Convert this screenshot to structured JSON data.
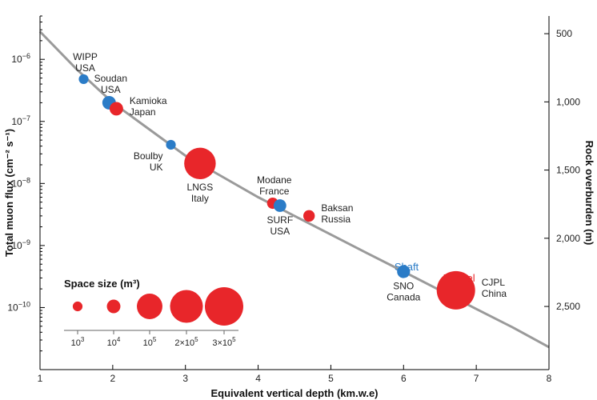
{
  "chart_data": {
    "type": "scatter",
    "x_axis": {
      "label": "Equivalent vertical depth (km.w.e)",
      "range": [
        1,
        8
      ],
      "ticks": [
        1,
        2,
        3,
        4,
        5,
        6,
        7,
        8
      ]
    },
    "y_axis": {
      "label": "Total muon flux (cm⁻² s⁻¹)",
      "scale": "log",
      "range": [
        1e-11,
        5e-06
      ],
      "ticks": [
        {
          "value": 1e-10,
          "base": "10",
          "exp": "−10"
        },
        {
          "value": 1e-09,
          "base": "10",
          "exp": "−9"
        },
        {
          "value": 1e-08,
          "base": "10",
          "exp": "−8"
        },
        {
          "value": 1e-07,
          "base": "10",
          "exp": "−7"
        },
        {
          "value": 1e-06,
          "base": "10",
          "exp": "−6"
        }
      ]
    },
    "y2_axis": {
      "label": "Rock overburden (m)",
      "ticks": [
        {
          "label": "500",
          "depth": 1.35
        },
        {
          "label": "1,000",
          "depth": 2.7
        },
        {
          "label": "1,500",
          "depth": 4.05
        },
        {
          "label": "2,000",
          "depth": 5.4
        },
        {
          "label": "2,500",
          "depth": 6.75
        }
      ]
    },
    "trend_line": {
      "points": [
        [
          1.0,
          2.8e-06
        ],
        [
          1.5,
          7e-07
        ],
        [
          2.0,
          2e-07
        ],
        [
          2.5,
          7.5e-08
        ],
        [
          3.0,
          2.8e-08
        ],
        [
          3.5,
          1.3e-08
        ],
        [
          4.0,
          6e-09
        ],
        [
          4.5,
          3e-09
        ],
        [
          5.0,
          1.5e-09
        ],
        [
          5.5,
          7.5e-10
        ],
        [
          6.0,
          3.8e-10
        ],
        [
          6.5,
          1.9e-10
        ],
        [
          7.0,
          9.5e-11
        ],
        [
          7.5,
          4.8e-11
        ],
        [
          8.0,
          2.3e-11
        ]
      ]
    },
    "categories": [
      {
        "name": "Shaft",
        "color": "#2b7cc7"
      },
      {
        "name": "Tunnel",
        "color": "#e8262a"
      }
    ],
    "sites": [
      {
        "name": "WIPP",
        "country": "USA",
        "depth": 1.6,
        "flux": 4.8e-07,
        "size": 1000,
        "type": "shaft",
        "label_pos": "above"
      },
      {
        "name": "Soudan",
        "country": "USA",
        "depth": 1.95,
        "flux": 2e-07,
        "size": 10000,
        "type": "shaft",
        "label_pos": "above"
      },
      {
        "name": "Kamioka",
        "country": "Japan",
        "depth": 2.05,
        "flux": 1.6e-07,
        "size": 10000,
        "type": "tunnel",
        "label_pos": "right"
      },
      {
        "name": "Boulby",
        "country": "UK",
        "depth": 2.8,
        "flux": 4.2e-08,
        "size": 1000,
        "type": "shaft",
        "label_pos": "below-left"
      },
      {
        "name": "LNGS",
        "country": "Italy",
        "depth": 3.2,
        "flux": 2.1e-08,
        "size": 180000,
        "type": "tunnel",
        "label_pos": "below"
      },
      {
        "name": "Modane",
        "country": "France",
        "depth": 4.2,
        "flux": 4.8e-09,
        "size": 3500,
        "type": "tunnel",
        "label_pos": "above"
      },
      {
        "name": "SURF",
        "country": "USA",
        "depth": 4.3,
        "flux": 4.4e-09,
        "size": 7000,
        "type": "shaft",
        "label_pos": "below"
      },
      {
        "name": "Baksan",
        "country": "Russia",
        "depth": 4.7,
        "flux": 3e-09,
        "size": 4000,
        "type": "tunnel",
        "label_pos": "right"
      },
      {
        "name": "SNO",
        "country": "Canada",
        "depth": 6.0,
        "flux": 3.8e-10,
        "size": 8000,
        "type": "shaft",
        "label_pos": "below"
      },
      {
        "name": "CJPL",
        "country": "China",
        "depth": 6.72,
        "flux": 1.9e-10,
        "size": 300000,
        "type": "tunnel",
        "label_pos": "right"
      }
    ],
    "legend": {
      "title": "Space size (m³)",
      "placement": "bottom-left",
      "entries": [
        {
          "size": 1000,
          "base": "10",
          "exp": "3"
        },
        {
          "size": 10000,
          "base": "10",
          "exp": "4"
        },
        {
          "size": 100000,
          "base": "10",
          "exp": "5"
        },
        {
          "size": 200000,
          "base": "2×10",
          "exp": "5"
        },
        {
          "size": 300000,
          "base": "3×10",
          "exp": "5"
        }
      ]
    }
  }
}
